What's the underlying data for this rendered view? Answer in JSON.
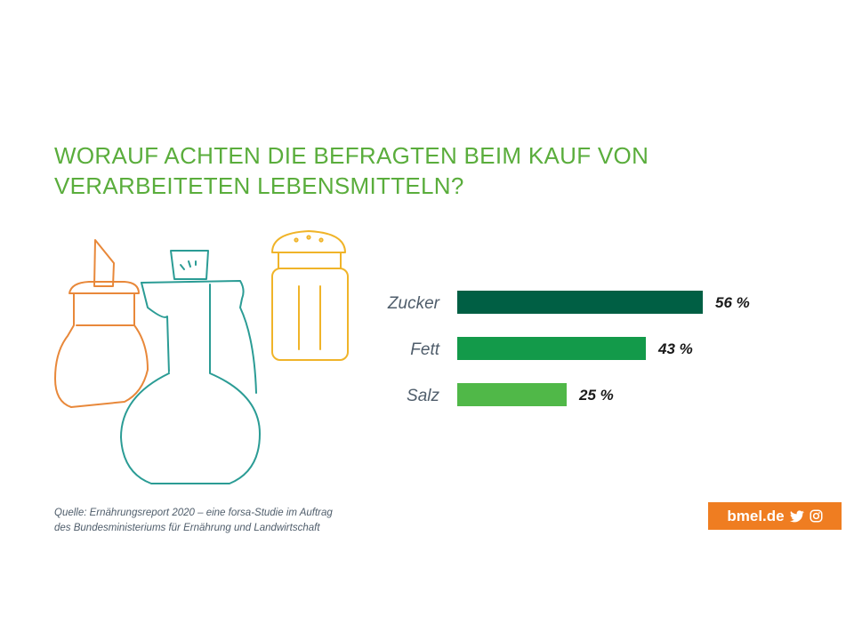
{
  "title": {
    "line1": "WORAUF ACHTEN DIE BEFRAGTEN BEIM KAUF VON",
    "line2": "VERARBEITETEN LEBENSMITTELN?"
  },
  "chart_data": {
    "type": "bar",
    "orientation": "horizontal",
    "title": "WORAUF ACHTEN DIE BEFRAGTEN BEIM KAUF VON VERARBEITETEN LEBENSMITTELN?",
    "categories": [
      "Zucker",
      "Fett",
      "Salz"
    ],
    "values": [
      56,
      43,
      25
    ],
    "value_labels": [
      "56 %",
      "43 %",
      "25 %"
    ],
    "unit": "%",
    "xlim": [
      0,
      56
    ],
    "bar_colors": [
      "#005f44",
      "#139a4a",
      "#50b848"
    ],
    "grid": false,
    "legend": false
  },
  "source": {
    "line1": "Quelle: Ernährungsreport 2020 – eine forsa-Studie im Auftrag",
    "line2": "des Bundesministeriums für Ernährung und Landwirtschaft"
  },
  "brand": {
    "label": "bmel.de",
    "icons": [
      "twitter-icon",
      "instagram-icon"
    ],
    "color": "#ef7d21"
  },
  "colors": {
    "title": "#5aad3c",
    "sugar_bowl": "#e8883a",
    "oil_bottle": "#2b9c95",
    "salt_shaker": "#f0b429"
  }
}
